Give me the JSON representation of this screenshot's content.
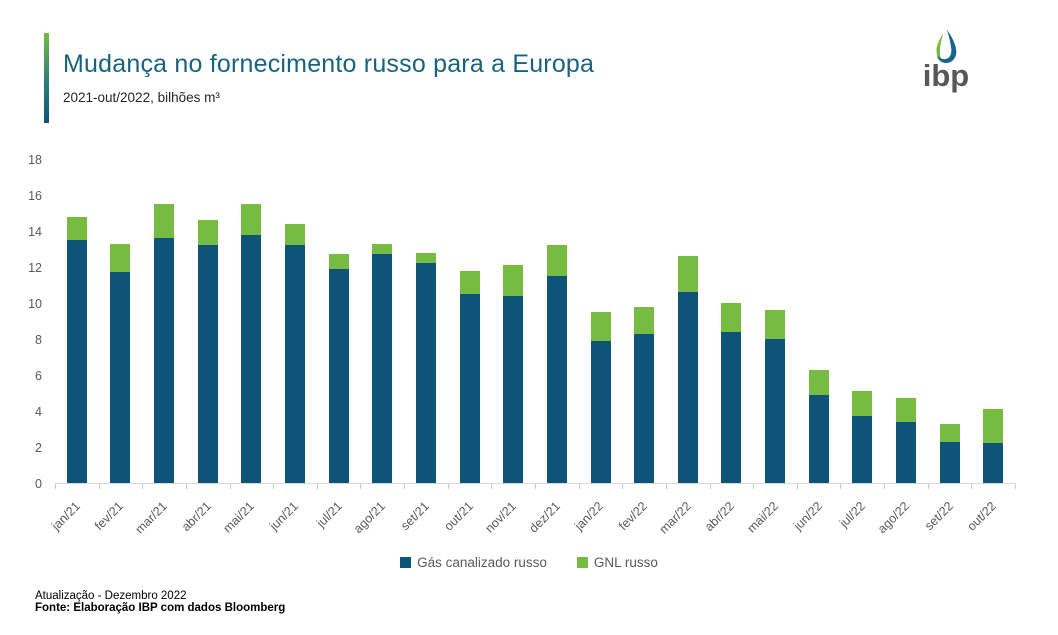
{
  "header": {
    "title": "Mudança no fornecimento russo para a Europa",
    "subtitle": "2021-out/2022, bilhões m³",
    "title_color": "#196380",
    "accent_top_color": "#76BC43",
    "accent_bottom_color": "#0E5479"
  },
  "logo": {
    "text": "ibp",
    "droplet_green": "#76BC43",
    "droplet_blue": "#19648C",
    "text_color": "#57585A"
  },
  "chart_data": {
    "type": "bar",
    "stacked": true,
    "title": "Mudança no fornecimento russo para a Europa",
    "subtitle": "2021-out/2022, bilhões m³",
    "xlabel": "",
    "ylabel": "bilhões m³",
    "ylim": [
      0,
      18
    ],
    "ytick_step": 2,
    "grid": false,
    "legend_position": "bottom",
    "categories": [
      "jan/21",
      "fev/21",
      "mar/21",
      "abr/21",
      "mai/21",
      "jun/21",
      "jul/21",
      "ago/21",
      "set/21",
      "out/21",
      "nov/21",
      "dez/21",
      "jan/22",
      "fev/22",
      "mar/22",
      "abr/22",
      "mai/22",
      "jun/22",
      "jul/22",
      "ago/22",
      "set/22",
      "out/22"
    ],
    "series": [
      {
        "name": "Gás canalizado russo",
        "color": "#0E5479",
        "values": [
          13.5,
          11.7,
          13.6,
          13.2,
          13.8,
          13.2,
          11.9,
          12.7,
          12.2,
          10.5,
          10.4,
          11.5,
          7.9,
          8.3,
          10.6,
          8.4,
          8.0,
          4.9,
          3.7,
          3.4,
          2.3,
          2.2
        ]
      },
      {
        "name": "GNL russo",
        "color": "#76BC43",
        "values": [
          1.3,
          1.6,
          1.9,
          1.4,
          1.7,
          1.2,
          0.8,
          0.6,
          0.6,
          1.3,
          1.7,
          1.7,
          1.6,
          1.5,
          2.0,
          1.6,
          1.6,
          1.4,
          1.4,
          1.3,
          1.0,
          1.9
        ]
      }
    ],
    "axis_text_color": "#595959",
    "axis_line_color": "#D9D9D9"
  },
  "legend": {
    "item1": "Gás canalizado russo",
    "item2": "GNL russo"
  },
  "footer": {
    "line1": "Atualização - Dezembro 2022",
    "line2": "Fonte: Elaboração IBP com dados Bloomberg"
  }
}
